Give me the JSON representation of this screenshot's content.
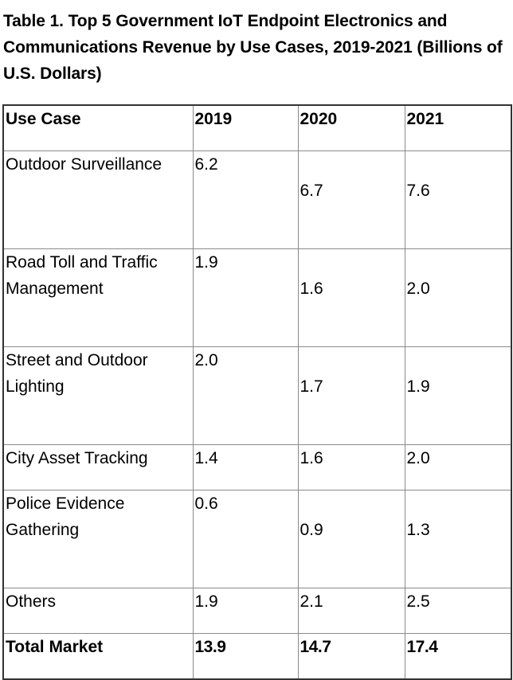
{
  "title": "Table 1. Top 5 Government IoT Endpoint Electronics and Communications Revenue by Use Cases, 2019-2021 (Billions of U.S. Dollars)",
  "headers": [
    "Use Case",
    "2019",
    "2020",
    "2021"
  ],
  "rows": [
    {
      "use_case": "Outdoor Surveillance",
      "v2019": "6.2",
      "v2020": "6.7",
      "v2021": "7.6"
    },
    {
      "use_case": "Road Toll and Traffic Management",
      "v2019": "1.9",
      "v2020": "1.6",
      "v2021": "2.0"
    },
    {
      "use_case": "Street and Outdoor Lighting",
      "v2019": "2.0",
      "v2020": "1.7",
      "v2021": "1.9"
    },
    {
      "use_case": "City Asset Tracking",
      "v2019": "1.4",
      "v2020": "1.6",
      "v2021": "2.0"
    },
    {
      "use_case": "Police Evidence Gathering",
      "v2019": "0.6",
      "v2020": "0.9",
      "v2021": "1.3"
    },
    {
      "use_case": "Others",
      "v2019": "1.9",
      "v2020": "2.1",
      "v2021": "2.5"
    }
  ],
  "total": {
    "use_case": "Total Market",
    "v2019": "13.9",
    "v2020": "14.7",
    "v2021": "17.4"
  }
}
